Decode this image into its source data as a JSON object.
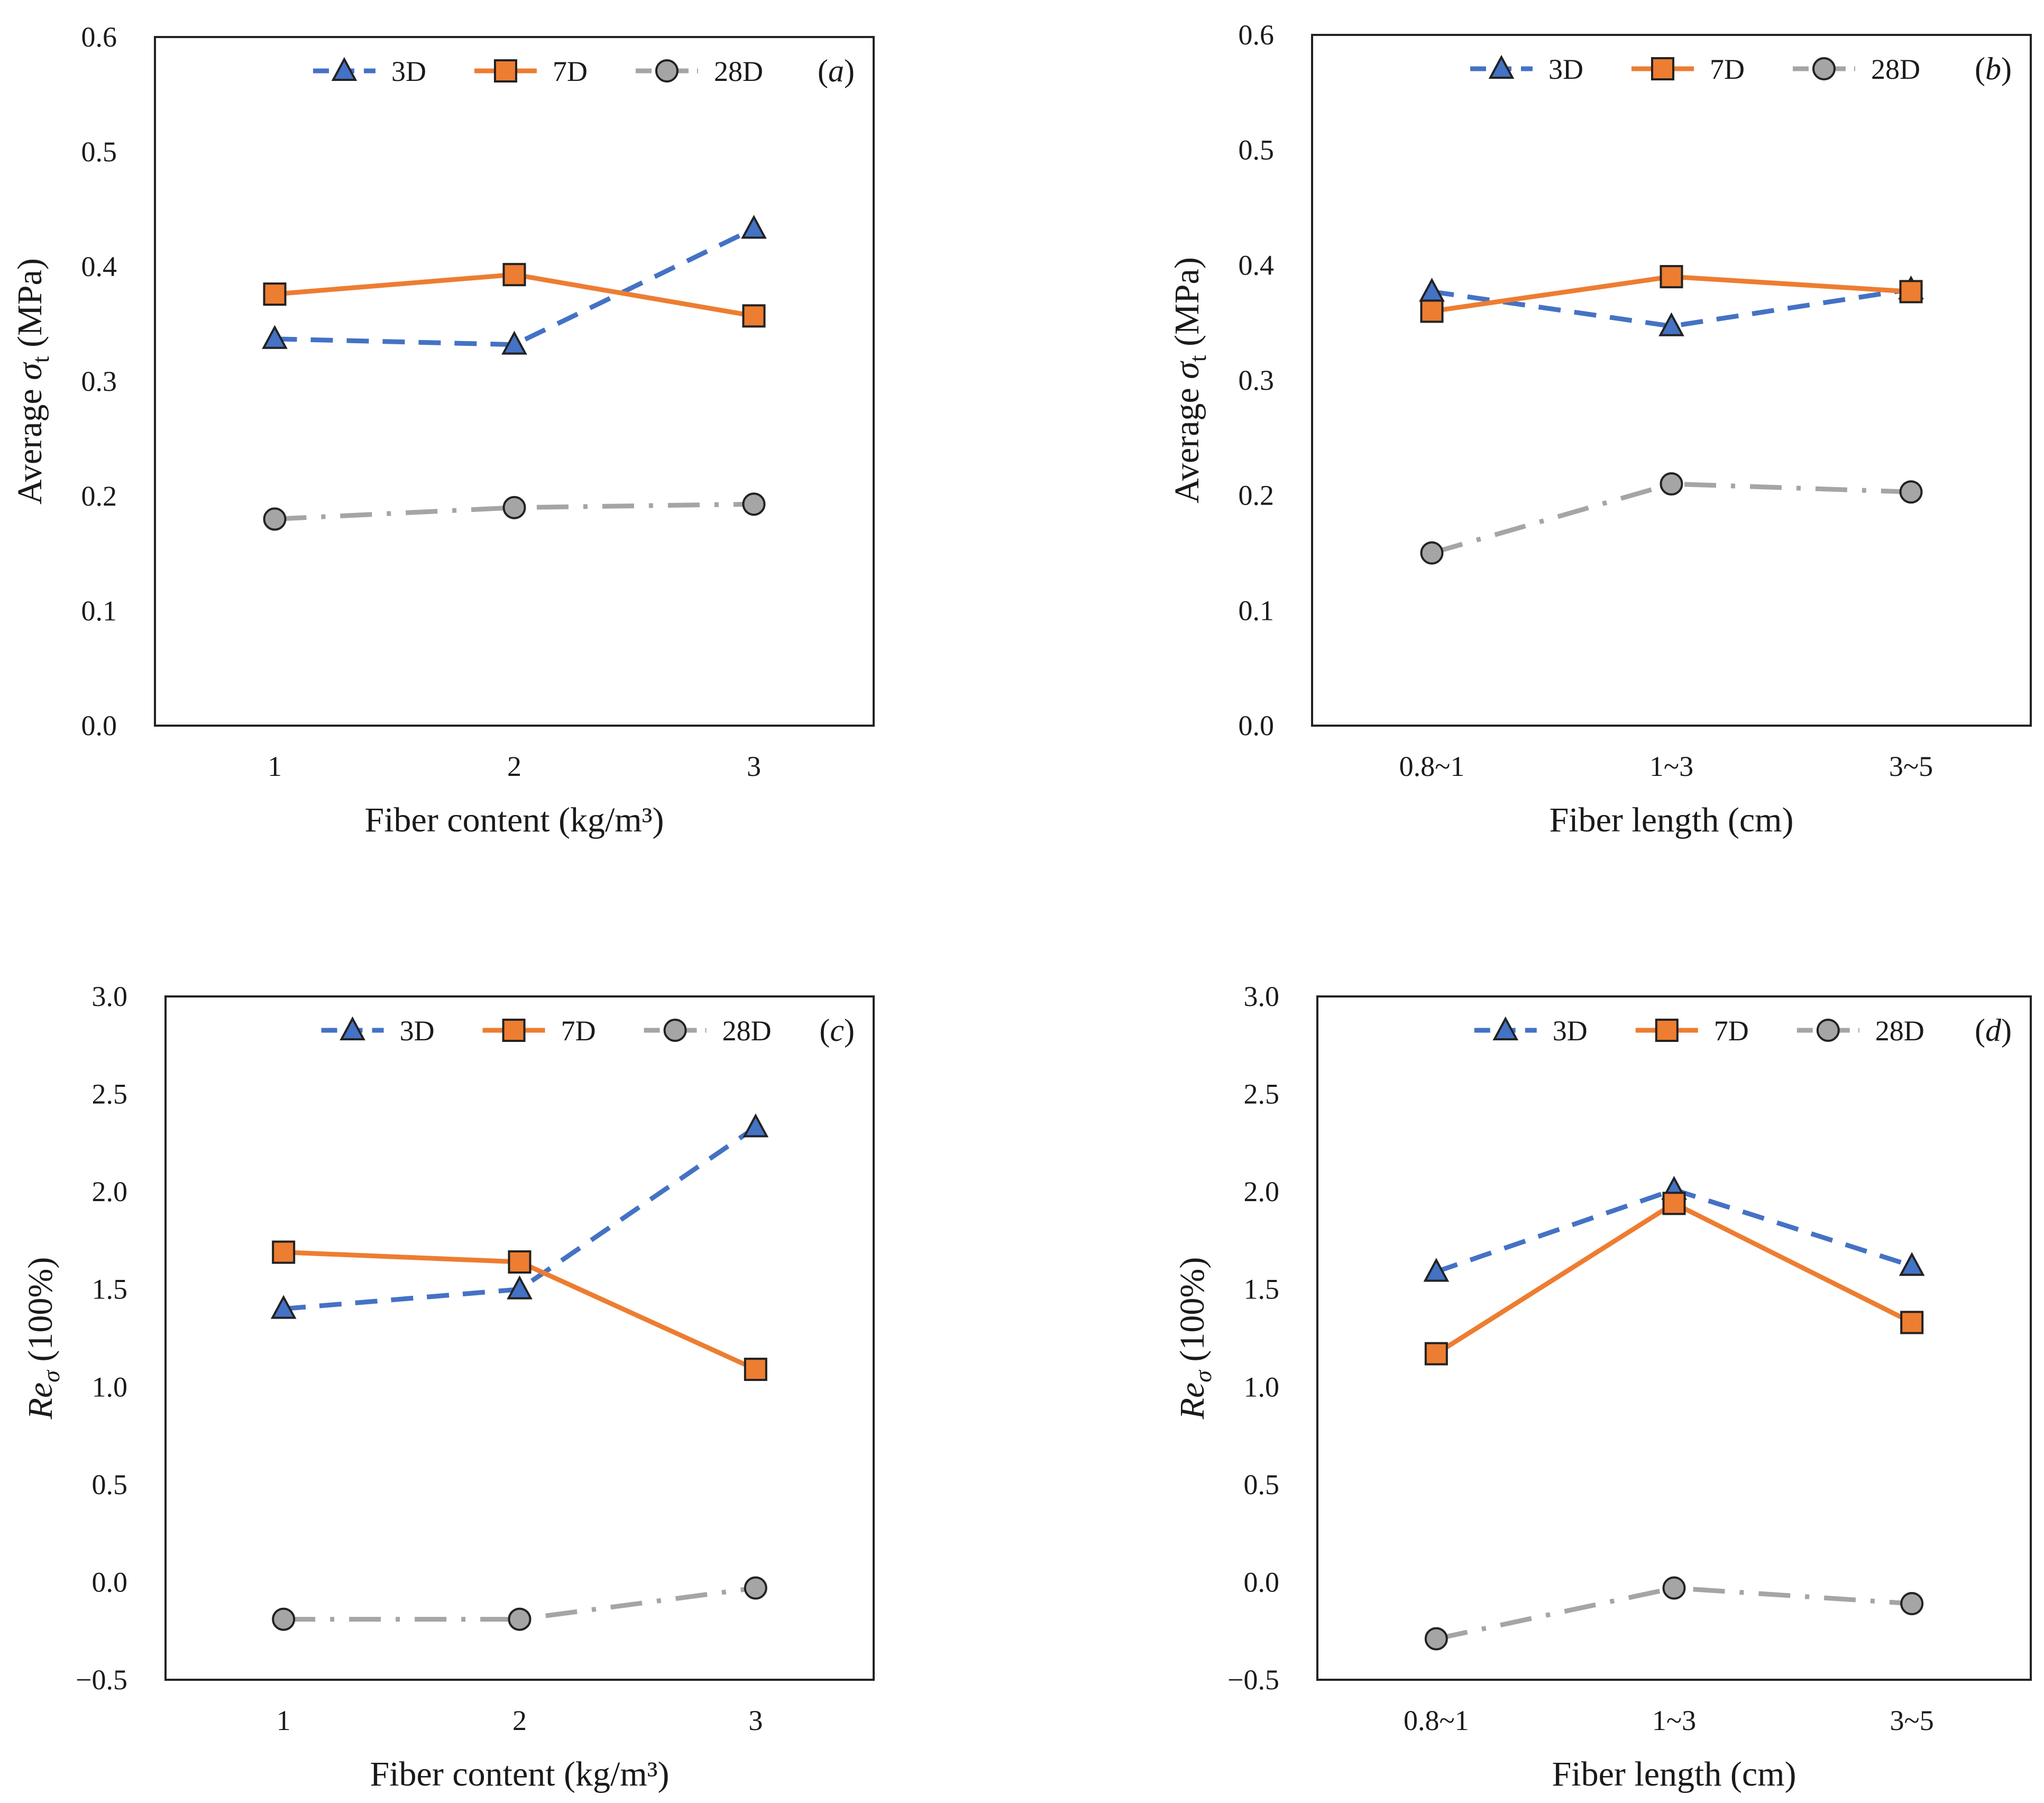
{
  "figure": {
    "series_styles": [
      {
        "name": "3D",
        "color": "#4472C4",
        "marker": "triangle",
        "dash": "dashed"
      },
      {
        "name": "7D",
        "color": "#ED7D31",
        "marker": "square",
        "dash": "solid"
      },
      {
        "name": "28D",
        "color": "#A5A5A5",
        "marker": "circle",
        "dash": "dashdot"
      }
    ]
  },
  "chart_data": [
    {
      "id": "a",
      "type": "line",
      "panel_label": "a",
      "xlabel": "Fiber content (kg/m³)",
      "ylabel_prefix": "Average ",
      "ylabel_symbol": "σ",
      "ylabel_subscript": "t",
      "ylabel_suffix": " (MPa)",
      "categories": [
        "1",
        "2",
        "3"
      ],
      "ylim": [
        0,
        0.6
      ],
      "yticks": [
        0,
        0.1,
        0.2,
        0.3,
        0.4,
        0.5,
        0.6
      ],
      "ytick_labels": [
        "0.0",
        "0.1",
        "0.2",
        "0.3",
        "0.4",
        "0.5",
        "0.6"
      ],
      "legend_position": "top",
      "series": [
        {
          "name": "3D",
          "values": [
            0.337,
            0.332,
            0.433
          ]
        },
        {
          "name": "7D",
          "values": [
            0.376,
            0.393,
            0.357
          ]
        },
        {
          "name": "28D",
          "values": [
            0.18,
            0.19,
            0.193
          ]
        }
      ]
    },
    {
      "id": "b",
      "type": "line",
      "panel_label": "b",
      "xlabel": "Fiber length (cm)",
      "ylabel_prefix": "Average ",
      "ylabel_symbol": "σ",
      "ylabel_subscript": "t",
      "ylabel_suffix": " (MPa)",
      "categories": [
        "0.8~1",
        "1~3",
        "3~5"
      ],
      "ylim": [
        0,
        0.6
      ],
      "yticks": [
        0,
        0.1,
        0.2,
        0.3,
        0.4,
        0.5,
        0.6
      ],
      "ytick_labels": [
        "0.0",
        "0.1",
        "0.2",
        "0.3",
        "0.4",
        "0.5",
        "0.6"
      ],
      "legend_position": "top",
      "series": [
        {
          "name": "3D",
          "values": [
            0.377,
            0.347,
            0.379
          ]
        },
        {
          "name": "7D",
          "values": [
            0.36,
            0.39,
            0.377
          ]
        },
        {
          "name": "28D",
          "values": [
            0.15,
            0.21,
            0.203
          ]
        }
      ]
    },
    {
      "id": "c",
      "type": "line",
      "panel_label": "c",
      "xlabel": "Fiber content (kg/m³)",
      "ylabel_prefix": "",
      "ylabel_symbol": "Re",
      "ylabel_subscript": "σ",
      "ylabel_suffix": " (100%)",
      "categories": [
        "1",
        "2",
        "3"
      ],
      "ylim": [
        -0.5,
        3.0
      ],
      "yticks": [
        -0.5,
        0,
        0.5,
        1.0,
        1.5,
        2.0,
        2.5,
        3.0
      ],
      "ytick_labels": [
        "−0.5",
        "0.0",
        "0.5",
        "1.0",
        "1.5",
        "2.0",
        "2.5",
        "3.0"
      ],
      "legend_position": "top",
      "series": [
        {
          "name": "3D",
          "values": [
            1.4,
            1.5,
            2.33
          ]
        },
        {
          "name": "7D",
          "values": [
            1.69,
            1.64,
            1.09
          ]
        },
        {
          "name": "28D",
          "values": [
            -0.19,
            -0.19,
            -0.03
          ]
        }
      ]
    },
    {
      "id": "d",
      "type": "line",
      "panel_label": "d",
      "xlabel": "Fiber length (cm)",
      "ylabel_prefix": "",
      "ylabel_symbol": "Re",
      "ylabel_subscript": "σ",
      "ylabel_suffix": " (100%)",
      "categories": [
        "0.8~1",
        "1~3",
        "3~5"
      ],
      "ylim": [
        -0.5,
        3.0
      ],
      "yticks": [
        -0.5,
        0,
        0.5,
        1.0,
        1.5,
        2.0,
        2.5,
        3.0
      ],
      "ytick_labels": [
        "−0.5",
        "0.0",
        "0.5",
        "1.0",
        "1.5",
        "2.0",
        "2.5",
        "3.0"
      ],
      "legend_position": "top",
      "series": [
        {
          "name": "3D",
          "values": [
            1.59,
            2.01,
            1.62
          ]
        },
        {
          "name": "7D",
          "values": [
            1.17,
            1.94,
            1.33
          ]
        },
        {
          "name": "28D",
          "values": [
            -0.29,
            -0.03,
            -0.11
          ]
        }
      ]
    }
  ]
}
